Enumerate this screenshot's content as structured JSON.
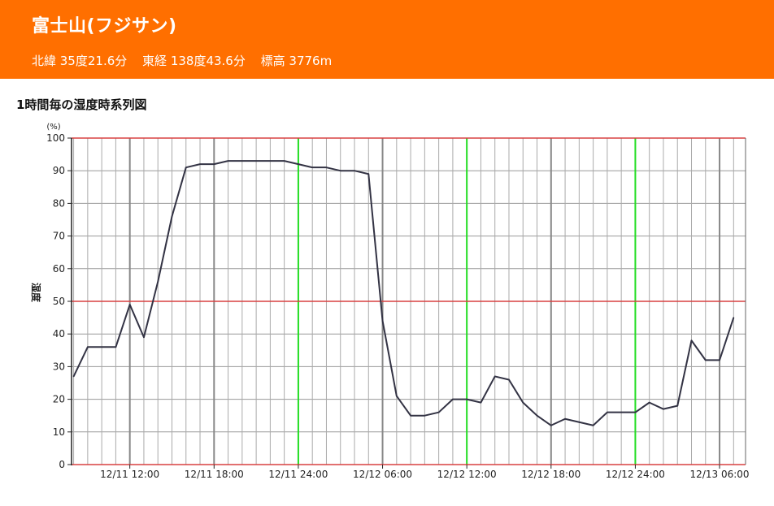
{
  "header": {
    "station_name": "富士山(フジサン)",
    "latitude": "北緯 35度21.6分",
    "longitude": "東経 138度43.6分",
    "elevation": "標高 3776m",
    "background_color": "#ff6f00"
  },
  "section": {
    "title": "1時間毎の湿度時系列図"
  },
  "chart_data": {
    "type": "line",
    "title": "",
    "ylabel": "湿度",
    "yunit": "(%)",
    "ylim": [
      0,
      100
    ],
    "ytick_labels": [
      "0",
      "10",
      "20",
      "30",
      "40",
      "50",
      "60",
      "70",
      "80",
      "90",
      "100"
    ],
    "x_tick_labels": [
      "12/11 12:00",
      "12/11 18:00",
      "12/11 24:00",
      "12/12 06:00",
      "12/12 12:00",
      "12/12 18:00",
      "12/12 24:00",
      "12/13 06:00"
    ],
    "x_start": "12/11 08:00",
    "x_end": "12/13 07:00",
    "x_step_hours": 1,
    "grid": true,
    "reference_lines": [
      {
        "y": 50,
        "color": "#d94040"
      },
      {
        "y": 100,
        "color": "#d94040"
      },
      {
        "y": 0,
        "color": "#d94040"
      }
    ],
    "day_lines": {
      "labels": [
        "12/11 24:00",
        "12/12 12:00",
        "12/12 24:00"
      ],
      "color": "#22dd22"
    },
    "six_hour_lines": {
      "labels": [
        "12/11 12:00",
        "12/11 18:00",
        "12/12 06:00",
        "12/12 18:00",
        "12/13 06:00"
      ],
      "color": "#888888"
    },
    "series": [
      {
        "color": "#333344",
        "values": [
          27,
          36,
          36,
          36,
          49,
          39,
          56,
          76,
          91,
          92,
          92,
          93,
          93,
          93,
          93,
          93,
          92,
          91,
          91,
          90,
          90,
          89,
          44,
          21,
          15,
          15,
          16,
          20,
          20,
          19,
          27,
          26,
          19,
          15,
          12,
          14,
          13,
          12,
          16,
          16,
          16,
          19,
          17,
          18,
          38,
          32,
          32,
          45
        ]
      }
    ]
  }
}
